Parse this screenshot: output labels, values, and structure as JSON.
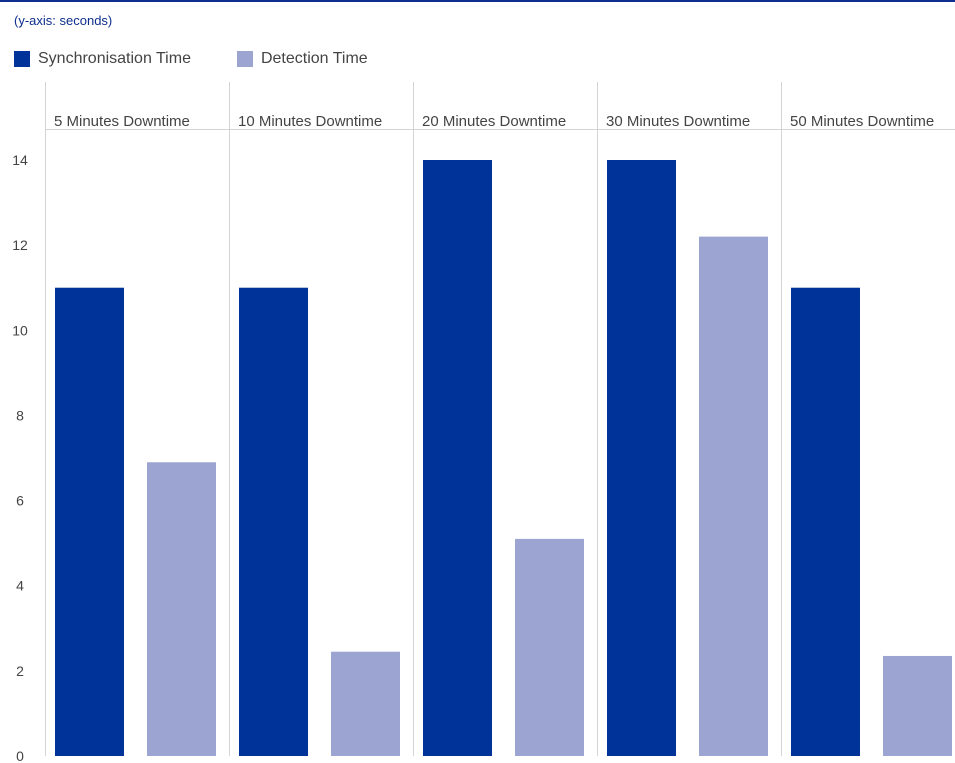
{
  "header": {
    "yaxis_note": "(y-axis: seconds)"
  },
  "colors": {
    "sync": "#003399",
    "detect": "#9ca4d2",
    "grid": "#d4d4d4",
    "text": "#444444"
  },
  "legend": [
    {
      "label": "Synchronisation Time",
      "color": "#003399"
    },
    {
      "label": "Detection Time",
      "color": "#9ca4d2"
    }
  ],
  "chart_data": {
    "type": "bar",
    "categories": [
      "5 Minutes Downtime",
      "10 Minutes Downtime",
      "20 Minutes Downtime",
      "30 Minutes Downtime",
      "50 Minutes Downtime"
    ],
    "series": [
      {
        "name": "Synchronisation Time",
        "values": [
          11,
          11,
          14,
          14,
          11
        ]
      },
      {
        "name": "Detection Time",
        "values": [
          6.9,
          2.45,
          5.1,
          12.2,
          2.35
        ]
      }
    ],
    "ylabel": "(y-axis: seconds)",
    "ylim": [
      0,
      14
    ],
    "yticks": [
      "0",
      "2",
      "4",
      "6",
      "8",
      "10",
      "12",
      "14"
    ],
    "legend_position": "top-left",
    "grid": false
  }
}
